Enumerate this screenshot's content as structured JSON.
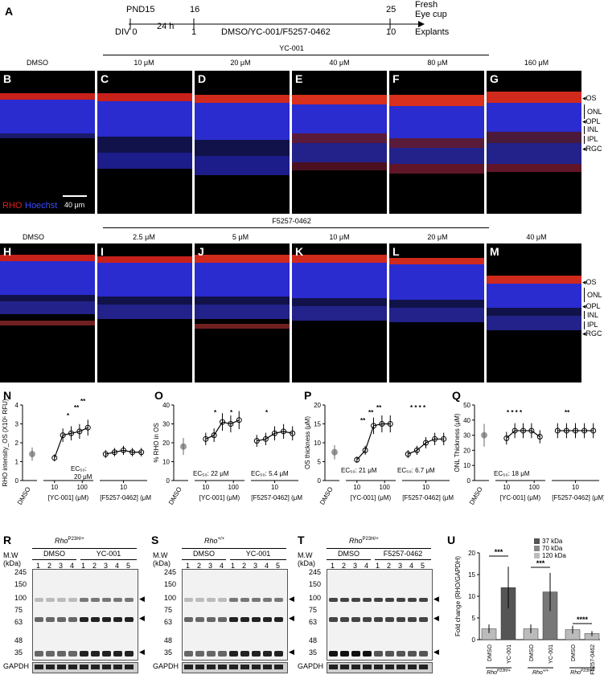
{
  "timeline": {
    "label": "A",
    "top_start": "PND15",
    "top_mid": "16",
    "top_end": "25",
    "bottom_start": "DIV 0",
    "bottom_mid": "1",
    "bottom_end": "10",
    "interval": "24 h",
    "treatment": "DMSO/YC-001/F5257-0462",
    "right_top_1": "Fresh",
    "right_top_2": "Eye cup",
    "right_bottom": "Explants"
  },
  "row1": {
    "group_title": "YC-001",
    "panels": [
      {
        "letter": "B",
        "conc": "DMSO"
      },
      {
        "letter": "C",
        "conc": "10 μM"
      },
      {
        "letter": "D",
        "conc": "20 μM"
      },
      {
        "letter": "E",
        "conc": "40 μM"
      },
      {
        "letter": "F",
        "conc": "80 μM"
      },
      {
        "letter": "G",
        "conc": "160 μM"
      }
    ],
    "stain_rho": "RHO",
    "stain_hoechst": "Hoechst",
    "scale": "40 μm",
    "layers": [
      "OS",
      "ONL",
      "OPL",
      "INL",
      "IPL",
      "RGC"
    ]
  },
  "row2": {
    "group_title": "F5257-0462",
    "panels": [
      {
        "letter": "H",
        "conc": "DMSO"
      },
      {
        "letter": "I",
        "conc": "2.5 μM"
      },
      {
        "letter": "J",
        "conc": "5 μM"
      },
      {
        "letter": "K",
        "conc": "10 μM"
      },
      {
        "letter": "L",
        "conc": "20 μM"
      },
      {
        "letter": "M",
        "conc": "40 μM"
      }
    ],
    "layers": [
      "OS",
      "ONL",
      "OPL",
      "INL",
      "IPL",
      "RGC"
    ]
  },
  "charts": {
    "common": {
      "dmso": "DMSO",
      "yc_axis": "[YC-001] (μM)",
      "f_axis": "[F5257-0462] (μM)",
      "t10": "10",
      "t100": "100"
    },
    "N": {
      "letter": "N",
      "ylabel": "RHO intensity_OS (X10⁵ RFU)",
      "yticks": [
        "0",
        "1",
        "2",
        "3",
        "4"
      ],
      "ec50": "EC₅₀:",
      "ec50_val": "20 μM",
      "stars": [
        "*",
        "**",
        "**"
      ]
    },
    "O": {
      "letter": "O",
      "ylabel": "% RHO in OS",
      "yticks": [
        "0",
        "10",
        "20",
        "30",
        "40"
      ],
      "ec50_1": "EC₅₀: 22 μM",
      "ec50_2": "EC₅₀: 5.4 μM",
      "stars": [
        "*",
        "*",
        "*"
      ]
    },
    "P": {
      "letter": "P",
      "ylabel": "OS thickness (μM)",
      "yticks": [
        "0",
        "5",
        "10",
        "15",
        "20"
      ],
      "ec50_1": "EC₅₀: 21 μM",
      "ec50_2": "EC₅₀: 6.7 μM",
      "stars": [
        "**",
        "**",
        "**",
        "* * * *"
      ]
    },
    "Q": {
      "letter": "Q",
      "ylabel": "ONL Thickness (μM)",
      "yticks": [
        "0",
        "10",
        "20",
        "30",
        "40",
        "50"
      ],
      "ec50_1": "EC₅₀: 18 μM",
      "stars": [
        "* * * *",
        "**"
      ]
    }
  },
  "chart_data": [
    {
      "type": "scatter",
      "ylabel": "RHO intensity_OS (X10⁵ RFU)",
      "ylim": [
        0,
        4
      ],
      "series": [
        {
          "name": "DMSO",
          "x": [
            "DMSO"
          ],
          "values": [
            1.4
          ]
        },
        {
          "name": "YC-001",
          "x": [
            10,
            20,
            40,
            80,
            160
          ],
          "values": [
            1.2,
            2.4,
            2.5,
            2.6,
            2.8
          ]
        },
        {
          "name": "F5257-0462",
          "x": [
            2.5,
            5,
            10,
            20,
            40
          ],
          "values": [
            1.4,
            1.5,
            1.6,
            1.5,
            1.5
          ]
        }
      ]
    },
    {
      "type": "scatter",
      "ylabel": "% RHO in OS",
      "ylim": [
        0,
        40
      ],
      "series": [
        {
          "name": "DMSO",
          "x": [
            "DMSO"
          ],
          "values": [
            18
          ]
        },
        {
          "name": "YC-001",
          "x": [
            10,
            20,
            40,
            80,
            160
          ],
          "values": [
            22,
            24,
            31,
            30,
            32
          ]
        },
        {
          "name": "F5257-0462",
          "x": [
            2.5,
            5,
            10,
            20,
            40
          ],
          "values": [
            21,
            22,
            25,
            26,
            25
          ]
        }
      ]
    },
    {
      "type": "scatter",
      "ylabel": "OS thickness (μM)",
      "ylim": [
        0,
        20
      ],
      "series": [
        {
          "name": "DMSO",
          "x": [
            "DMSO"
          ],
          "values": [
            7.5
          ]
        },
        {
          "name": "YC-001",
          "x": [
            10,
            20,
            40,
            80,
            160
          ],
          "values": [
            5.5,
            8,
            14.5,
            15,
            15
          ]
        },
        {
          "name": "F5257-0462",
          "x": [
            2.5,
            5,
            10,
            20,
            40
          ],
          "values": [
            7,
            8,
            10,
            11,
            11
          ]
        }
      ]
    },
    {
      "type": "scatter",
      "ylabel": "ONL Thickness (μM)",
      "ylim": [
        0,
        50
      ],
      "series": [
        {
          "name": "DMSO",
          "x": [
            "DMSO"
          ],
          "values": [
            30
          ]
        },
        {
          "name": "YC-001",
          "x": [
            10,
            20,
            40,
            80,
            160
          ],
          "values": [
            28,
            33,
            33,
            33,
            29
          ]
        },
        {
          "name": "F5257-0462",
          "x": [
            2.5,
            5,
            10,
            20,
            40
          ],
          "values": [
            33,
            33,
            33,
            33,
            33
          ]
        }
      ]
    },
    {
      "type": "bar",
      "ylabel": "Fold change (RHO/GAPDH)",
      "ylim": [
        0,
        20
      ],
      "categories": [
        "DMSO",
        "YC-001",
        "DMSO",
        "YC-001",
        "DMSO",
        "F5257-0462"
      ],
      "values": [
        2.5,
        12,
        2.5,
        11,
        2.3,
        1.4
      ]
    }
  ],
  "blots": {
    "R": {
      "letter": "R",
      "genotype": "Rho",
      "sup": "P23H/+",
      "g1": "DMSO",
      "g2": "YC-001",
      "lanes1": [
        "1",
        "2",
        "3",
        "4"
      ],
      "lanes2": [
        "1",
        "2",
        "3",
        "4",
        "5"
      ]
    },
    "S": {
      "letter": "S",
      "genotype": "Rho",
      "sup": "+/+",
      "g1": "DMSO",
      "g2": "YC-001",
      "lanes1": [
        "1",
        "2",
        "3",
        "4"
      ],
      "lanes2": [
        "1",
        "2",
        "3",
        "4",
        "5"
      ]
    },
    "T": {
      "letter": "T",
      "genotype": "Rho",
      "sup": "P23H/+",
      "g1": "DMSO",
      "g2": "F5257-0462",
      "lanes1": [
        "1",
        "2",
        "3",
        "4"
      ],
      "lanes2": [
        "1",
        "2",
        "3",
        "4",
        "5"
      ]
    },
    "mw": "M.W",
    "kda": "(kDa)",
    "markers": [
      "245",
      "150",
      "100",
      "75",
      "63",
      "48",
      "35"
    ],
    "gapdh": "GAPDH"
  },
  "panelU": {
    "letter": "U",
    "ylabel": "Fold change (RHO/GAPDH)",
    "yticks": [
      "0",
      "5",
      "10",
      "15",
      "20"
    ],
    "legend": [
      "37 kDa",
      "70 kDa",
      "120 kDa"
    ],
    "stars": [
      "***",
      "***",
      "****"
    ],
    "xlabels": [
      "DMSO",
      "YC-001",
      "DMSO",
      "YC-001",
      "DMSO",
      "F5257-0462"
    ],
    "groups": [
      {
        "g": "Rho",
        "s": "P23H/+"
      },
      {
        "g": "Rho",
        "s": "+/+"
      },
      {
        "g": "Rho",
        "s": "P23H/+"
      }
    ]
  }
}
